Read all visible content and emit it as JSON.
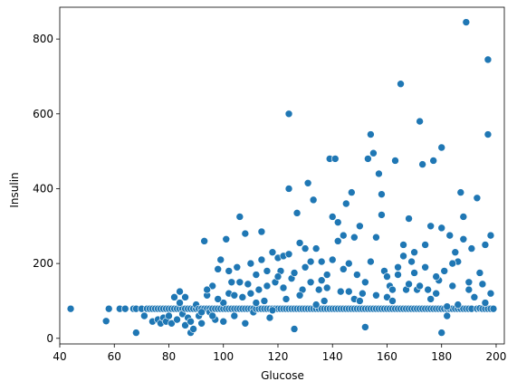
{
  "chart_data": {
    "type": "scatter",
    "xlabel": "Glucose",
    "ylabel": "Insulin",
    "xlim": [
      40,
      203
    ],
    "ylim": [
      -15,
      885
    ],
    "xticks": [
      40,
      60,
      80,
      100,
      120,
      140,
      160,
      180,
      200
    ],
    "yticks": [
      0,
      200,
      400,
      600,
      800
    ],
    "grid": false,
    "point_color": "#1f77b4",
    "series": [
      {
        "points": [
          [
            44,
            79
          ],
          [
            57,
            46
          ],
          [
            58,
            79
          ],
          [
            62,
            79
          ],
          [
            64,
            79
          ],
          [
            67,
            79
          ],
          [
            68,
            15
          ],
          [
            68,
            79
          ],
          [
            70,
            79
          ],
          [
            71,
            60
          ],
          [
            72,
            79
          ],
          [
            73,
            79
          ],
          [
            74,
            45
          ],
          [
            74,
            79
          ],
          [
            75,
            79
          ],
          [
            76,
            50
          ],
          [
            76,
            79
          ],
          [
            77,
            40
          ],
          [
            77,
            79
          ],
          [
            78,
            79
          ],
          [
            78,
            55
          ],
          [
            79,
            79
          ],
          [
            79,
            45
          ],
          [
            80,
            79
          ],
          [
            80,
            60
          ],
          [
            81,
            79
          ],
          [
            81,
            40
          ],
          [
            82,
            79
          ],
          [
            82,
            110
          ],
          [
            83,
            79
          ],
          [
            83,
            50
          ],
          [
            84,
            79
          ],
          [
            84,
            125
          ],
          [
            85,
            79
          ],
          [
            85,
            65
          ],
          [
            86,
            79
          ],
          [
            86,
            35
          ],
          [
            87,
            79
          ],
          [
            87,
            55
          ],
          [
            88,
            79
          ],
          [
            88,
            45
          ],
          [
            88,
            15
          ],
          [
            89,
            79
          ],
          [
            89,
            25
          ],
          [
            90,
            79
          ],
          [
            90,
            90
          ],
          [
            91,
            79
          ],
          [
            91,
            60
          ],
          [
            92,
            79
          ],
          [
            92,
            40
          ],
          [
            93,
            79
          ],
          [
            93,
            260
          ],
          [
            94,
            79
          ],
          [
            94,
            115
          ],
          [
            95,
            79
          ],
          [
            95,
            70
          ],
          [
            96,
            79
          ],
          [
            96,
            140
          ],
          [
            97,
            79
          ],
          [
            97,
            50
          ],
          [
            98,
            79
          ],
          [
            98,
            185
          ],
          [
            99,
            79
          ],
          [
            99,
            210
          ],
          [
            100,
            79
          ],
          [
            100,
            95
          ],
          [
            101,
            79
          ],
          [
            101,
            265
          ],
          [
            102,
            79
          ],
          [
            102,
            120
          ],
          [
            103,
            79
          ],
          [
            103,
            150
          ],
          [
            104,
            79
          ],
          [
            104,
            60
          ],
          [
            105,
            79
          ],
          [
            105,
            190
          ],
          [
            106,
            79
          ],
          [
            106,
            325
          ],
          [
            107,
            79
          ],
          [
            107,
            110
          ],
          [
            108,
            79
          ],
          [
            108,
            280
          ],
          [
            109,
            79
          ],
          [
            109,
            145
          ],
          [
            110,
            79
          ],
          [
            110,
            200
          ],
          [
            111,
            79
          ],
          [
            111,
            70
          ],
          [
            112,
            79
          ],
          [
            112,
            170
          ],
          [
            113,
            79
          ],
          [
            113,
            130
          ],
          [
            114,
            79
          ],
          [
            114,
            285
          ],
          [
            115,
            79
          ],
          [
            115,
            100
          ],
          [
            116,
            79
          ],
          [
            116,
            180
          ],
          [
            117,
            79
          ],
          [
            117,
            55
          ],
          [
            118,
            79
          ],
          [
            118,
            230
          ],
          [
            119,
            79
          ],
          [
            119,
            150
          ],
          [
            120,
            79
          ],
          [
            120,
            215
          ],
          [
            121,
            79
          ],
          [
            121,
            180
          ],
          [
            122,
            79
          ],
          [
            122,
            220
          ],
          [
            123,
            79
          ],
          [
            123,
            105
          ],
          [
            124,
            79
          ],
          [
            124,
            600
          ],
          [
            124,
            400
          ],
          [
            125,
            79
          ],
          [
            125,
            160
          ],
          [
            126,
            79
          ],
          [
            126,
            25
          ],
          [
            127,
            79
          ],
          [
            127,
            335
          ],
          [
            128,
            79
          ],
          [
            128,
            255
          ],
          [
            129,
            79
          ],
          [
            129,
            130
          ],
          [
            130,
            79
          ],
          [
            130,
            190
          ],
          [
            131,
            79
          ],
          [
            131,
            415
          ],
          [
            132,
            79
          ],
          [
            132,
            150
          ],
          [
            133,
            79
          ],
          [
            133,
            370
          ],
          [
            134,
            79
          ],
          [
            134,
            240
          ],
          [
            135,
            79
          ],
          [
            135,
            130
          ],
          [
            136,
            79
          ],
          [
            136,
            205
          ],
          [
            137,
            79
          ],
          [
            137,
            100
          ],
          [
            138,
            79
          ],
          [
            138,
            170
          ],
          [
            139,
            79
          ],
          [
            139,
            480
          ],
          [
            140,
            79
          ],
          [
            140,
            325
          ],
          [
            141,
            79
          ],
          [
            141,
            480
          ],
          [
            142,
            79
          ],
          [
            142,
            310
          ],
          [
            143,
            79
          ],
          [
            143,
            125
          ],
          [
            144,
            79
          ],
          [
            144,
            275
          ],
          [
            145,
            79
          ],
          [
            145,
            360
          ],
          [
            146,
            79
          ],
          [
            146,
            200
          ],
          [
            147,
            79
          ],
          [
            147,
            390
          ],
          [
            148,
            79
          ],
          [
            148,
            105
          ],
          [
            149,
            79
          ],
          [
            149,
            170
          ],
          [
            150,
            79
          ],
          [
            150,
            300
          ],
          [
            151,
            79
          ],
          [
            151,
            120
          ],
          [
            152,
            79
          ],
          [
            152,
            30
          ],
          [
            153,
            79
          ],
          [
            153,
            480
          ],
          [
            154,
            79
          ],
          [
            154,
            545
          ],
          [
            155,
            79
          ],
          [
            155,
            495
          ],
          [
            156,
            79
          ],
          [
            156,
            270
          ],
          [
            157,
            79
          ],
          [
            157,
            440
          ],
          [
            158,
            79
          ],
          [
            158,
            385
          ],
          [
            159,
            79
          ],
          [
            159,
            180
          ],
          [
            160,
            79
          ],
          [
            160,
            110
          ],
          [
            161,
            79
          ],
          [
            161,
            140
          ],
          [
            162,
            79
          ],
          [
            162,
            100
          ],
          [
            163,
            79
          ],
          [
            163,
            475
          ],
          [
            164,
            79
          ],
          [
            164,
            170
          ],
          [
            165,
            79
          ],
          [
            165,
            680
          ],
          [
            166,
            79
          ],
          [
            166,
            250
          ],
          [
            167,
            79
          ],
          [
            167,
            130
          ],
          [
            168,
            79
          ],
          [
            168,
            320
          ],
          [
            169,
            79
          ],
          [
            169,
            205
          ],
          [
            170,
            79
          ],
          [
            170,
            230
          ],
          [
            171,
            79
          ],
          [
            171,
            130
          ],
          [
            172,
            79
          ],
          [
            172,
            580
          ],
          [
            173,
            79
          ],
          [
            173,
            465
          ],
          [
            174,
            79
          ],
          [
            174,
            190
          ],
          [
            175,
            79
          ],
          [
            175,
            130
          ],
          [
            176,
            79
          ],
          [
            176,
            300
          ],
          [
            177,
            79
          ],
          [
            177,
            475
          ],
          [
            178,
            79
          ],
          [
            178,
            120
          ],
          [
            179,
            79
          ],
          [
            179,
            155
          ],
          [
            180,
            79
          ],
          [
            180,
            510
          ],
          [
            180,
            15
          ],
          [
            181,
            79
          ],
          [
            181,
            180
          ],
          [
            182,
            79
          ],
          [
            182,
            60
          ],
          [
            183,
            79
          ],
          [
            183,
            275
          ],
          [
            184,
            79
          ],
          [
            184,
            140
          ],
          [
            185,
            79
          ],
          [
            185,
            230
          ],
          [
            186,
            79
          ],
          [
            186,
            205
          ],
          [
            187,
            79
          ],
          [
            187,
            390
          ],
          [
            188,
            79
          ],
          [
            188,
            325
          ],
          [
            189,
            79
          ],
          [
            189,
            845
          ],
          [
            190,
            79
          ],
          [
            190,
            130
          ],
          [
            191,
            79
          ],
          [
            191,
            240
          ],
          [
            193,
            79
          ],
          [
            193,
            375
          ],
          [
            194,
            79
          ],
          [
            194,
            80
          ],
          [
            195,
            79
          ],
          [
            195,
            145
          ],
          [
            196,
            79
          ],
          [
            196,
            250
          ],
          [
            197,
            79
          ],
          [
            197,
            745
          ],
          [
            197,
            545
          ],
          [
            198,
            79
          ],
          [
            198,
            275
          ],
          [
            199,
            79
          ],
          [
            84,
            95
          ],
          [
            86,
            110
          ],
          [
            92,
            70
          ],
          [
            94,
            130
          ],
          [
            96,
            60
          ],
          [
            98,
            105
          ],
          [
            100,
            45
          ],
          [
            102,
            180
          ],
          [
            104,
            115
          ],
          [
            106,
            150
          ],
          [
            108,
            40
          ],
          [
            110,
            120
          ],
          [
            112,
            95
          ],
          [
            114,
            210
          ],
          [
            116,
            140
          ],
          [
            118,
            75
          ],
          [
            120,
            165
          ],
          [
            122,
            135
          ],
          [
            124,
            225
          ],
          [
            126,
            175
          ],
          [
            128,
            115
          ],
          [
            130,
            240
          ],
          [
            132,
            205
          ],
          [
            134,
            90
          ],
          [
            136,
            155
          ],
          [
            138,
            135
          ],
          [
            140,
            210
          ],
          [
            142,
            260
          ],
          [
            144,
            185
          ],
          [
            146,
            125
          ],
          [
            148,
            270
          ],
          [
            150,
            100
          ],
          [
            152,
            150
          ],
          [
            154,
            205
          ],
          [
            156,
            115
          ],
          [
            158,
            330
          ],
          [
            160,
            165
          ],
          [
            162,
            130
          ],
          [
            164,
            190
          ],
          [
            166,
            220
          ],
          [
            168,
            145
          ],
          [
            170,
            175
          ],
          [
            172,
            140
          ],
          [
            174,
            250
          ],
          [
            176,
            105
          ],
          [
            178,
            165
          ],
          [
            180,
            295
          ],
          [
            182,
            85
          ],
          [
            184,
            200
          ],
          [
            186,
            90
          ],
          [
            188,
            265
          ],
          [
            190,
            150
          ],
          [
            192,
            110
          ],
          [
            194,
            175
          ],
          [
            196,
            95
          ],
          [
            198,
            120
          ]
        ]
      }
    ]
  }
}
